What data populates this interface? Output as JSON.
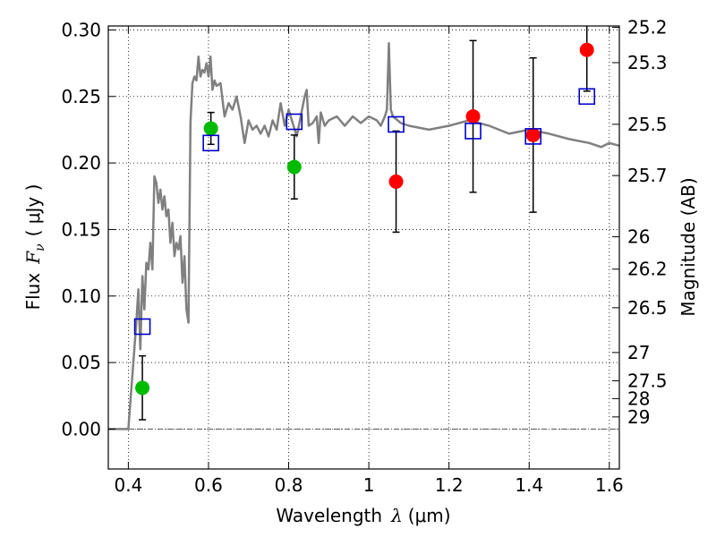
{
  "chart_data": {
    "type": "scatter",
    "title": "",
    "xlabel": "Wavelength",
    "xlabel_symbol": "λ",
    "xlabel_unit": "(μm)",
    "ylabel": "Flux",
    "ylabel_symbol": "F",
    "ylabel_subscript": "ν",
    "ylabel_unit": "( μJy )",
    "y2label": "Magnitude (AB)",
    "xlim": [
      0.35,
      1.625
    ],
    "ylim": [
      -0.03,
      0.303
    ],
    "grid": true,
    "x_ticks": [
      "0.4",
      "0.6",
      "0.8",
      "1",
      "1.2",
      "1.4",
      "1.6"
    ],
    "y_ticks": [
      "0.00",
      "0.05",
      "0.10",
      "0.15",
      "0.20",
      "0.25",
      "0.30"
    ],
    "mag_ticks": [
      "25.2",
      "25.3",
      "25.5",
      "25.7",
      "26",
      "26.2",
      "26.5",
      "27",
      "27.5",
      "28",
      "29"
    ],
    "colors": {
      "model": "#808080",
      "green": "#00bb00",
      "red": "#ff0000",
      "blue": "#0000cc",
      "errorbar": "#000000",
      "zero_line": "#555555"
    },
    "model_spectrum": {
      "x": [
        0.35,
        0.4,
        0.405,
        0.41,
        0.42,
        0.425,
        0.43,
        0.435,
        0.44,
        0.445,
        0.45,
        0.455,
        0.46,
        0.465,
        0.47,
        0.475,
        0.48,
        0.485,
        0.49,
        0.495,
        0.5,
        0.505,
        0.51,
        0.515,
        0.52,
        0.525,
        0.53,
        0.535,
        0.54,
        0.545,
        0.55,
        0.555,
        0.56,
        0.565,
        0.57,
        0.575,
        0.58,
        0.585,
        0.59,
        0.595,
        0.6,
        0.605,
        0.61,
        0.615,
        0.62,
        0.63,
        0.64,
        0.65,
        0.66,
        0.67,
        0.68,
        0.69,
        0.7,
        0.71,
        0.72,
        0.73,
        0.74,
        0.75,
        0.76,
        0.77,
        0.78,
        0.79,
        0.8,
        0.81,
        0.82,
        0.83,
        0.84,
        0.845,
        0.85,
        0.86,
        0.87,
        0.875,
        0.88,
        0.89,
        0.9,
        0.92,
        0.94,
        0.96,
        0.98,
        1.0,
        1.02,
        1.03,
        1.04,
        1.045,
        1.05,
        1.055,
        1.06,
        1.08,
        1.1,
        1.15,
        1.2,
        1.25,
        1.3,
        1.35,
        1.4,
        1.45,
        1.5,
        1.55,
        1.58,
        1.6,
        1.625
      ],
      "y": [
        0.0,
        0.0,
        0.02,
        0.04,
        0.08,
        0.105,
        0.06,
        0.115,
        0.09,
        0.125,
        0.12,
        0.14,
        0.12,
        0.19,
        0.185,
        0.17,
        0.18,
        0.165,
        0.175,
        0.16,
        0.165,
        0.14,
        0.155,
        0.13,
        0.14,
        0.135,
        0.145,
        0.11,
        0.13,
        0.09,
        0.08,
        0.23,
        0.26,
        0.265,
        0.262,
        0.28,
        0.265,
        0.27,
        0.268,
        0.275,
        0.265,
        0.28,
        0.255,
        0.262,
        0.258,
        0.26,
        0.235,
        0.245,
        0.24,
        0.25,
        0.235,
        0.215,
        0.232,
        0.225,
        0.228,
        0.222,
        0.228,
        0.22,
        0.232,
        0.225,
        0.245,
        0.228,
        0.24,
        0.23,
        0.22,
        0.235,
        0.25,
        0.255,
        0.228,
        0.23,
        0.235,
        0.215,
        0.238,
        0.228,
        0.232,
        0.235,
        0.228,
        0.235,
        0.23,
        0.235,
        0.232,
        0.228,
        0.235,
        0.24,
        0.29,
        0.24,
        0.235,
        0.23,
        0.228,
        0.225,
        0.228,
        0.232,
        0.228,
        0.222,
        0.225,
        0.222,
        0.218,
        0.215,
        0.212,
        0.215,
        0.213
      ]
    },
    "green_points": [
      {
        "x": 0.435,
        "y": 0.031,
        "err": 0.024
      },
      {
        "x": 0.606,
        "y": 0.226,
        "err": 0.012
      },
      {
        "x": 0.814,
        "y": 0.197,
        "err": 0.024
      }
    ],
    "red_points": [
      {
        "x": 1.068,
        "y": 0.186,
        "err": 0.038
      },
      {
        "x": 1.26,
        "y": 0.235,
        "err": 0.057
      },
      {
        "x": 1.41,
        "y": 0.221,
        "err": 0.058
      },
      {
        "x": 1.544,
        "y": 0.285,
        "err": 0.031
      }
    ],
    "blue_squares": [
      {
        "x": 0.435,
        "y": 0.077
      },
      {
        "x": 0.606,
        "y": 0.215
      },
      {
        "x": 0.814,
        "y": 0.231
      },
      {
        "x": 1.068,
        "y": 0.229
      },
      {
        "x": 1.26,
        "y": 0.224
      },
      {
        "x": 1.41,
        "y": 0.22
      },
      {
        "x": 1.544,
        "y": 0.25
      }
    ]
  }
}
